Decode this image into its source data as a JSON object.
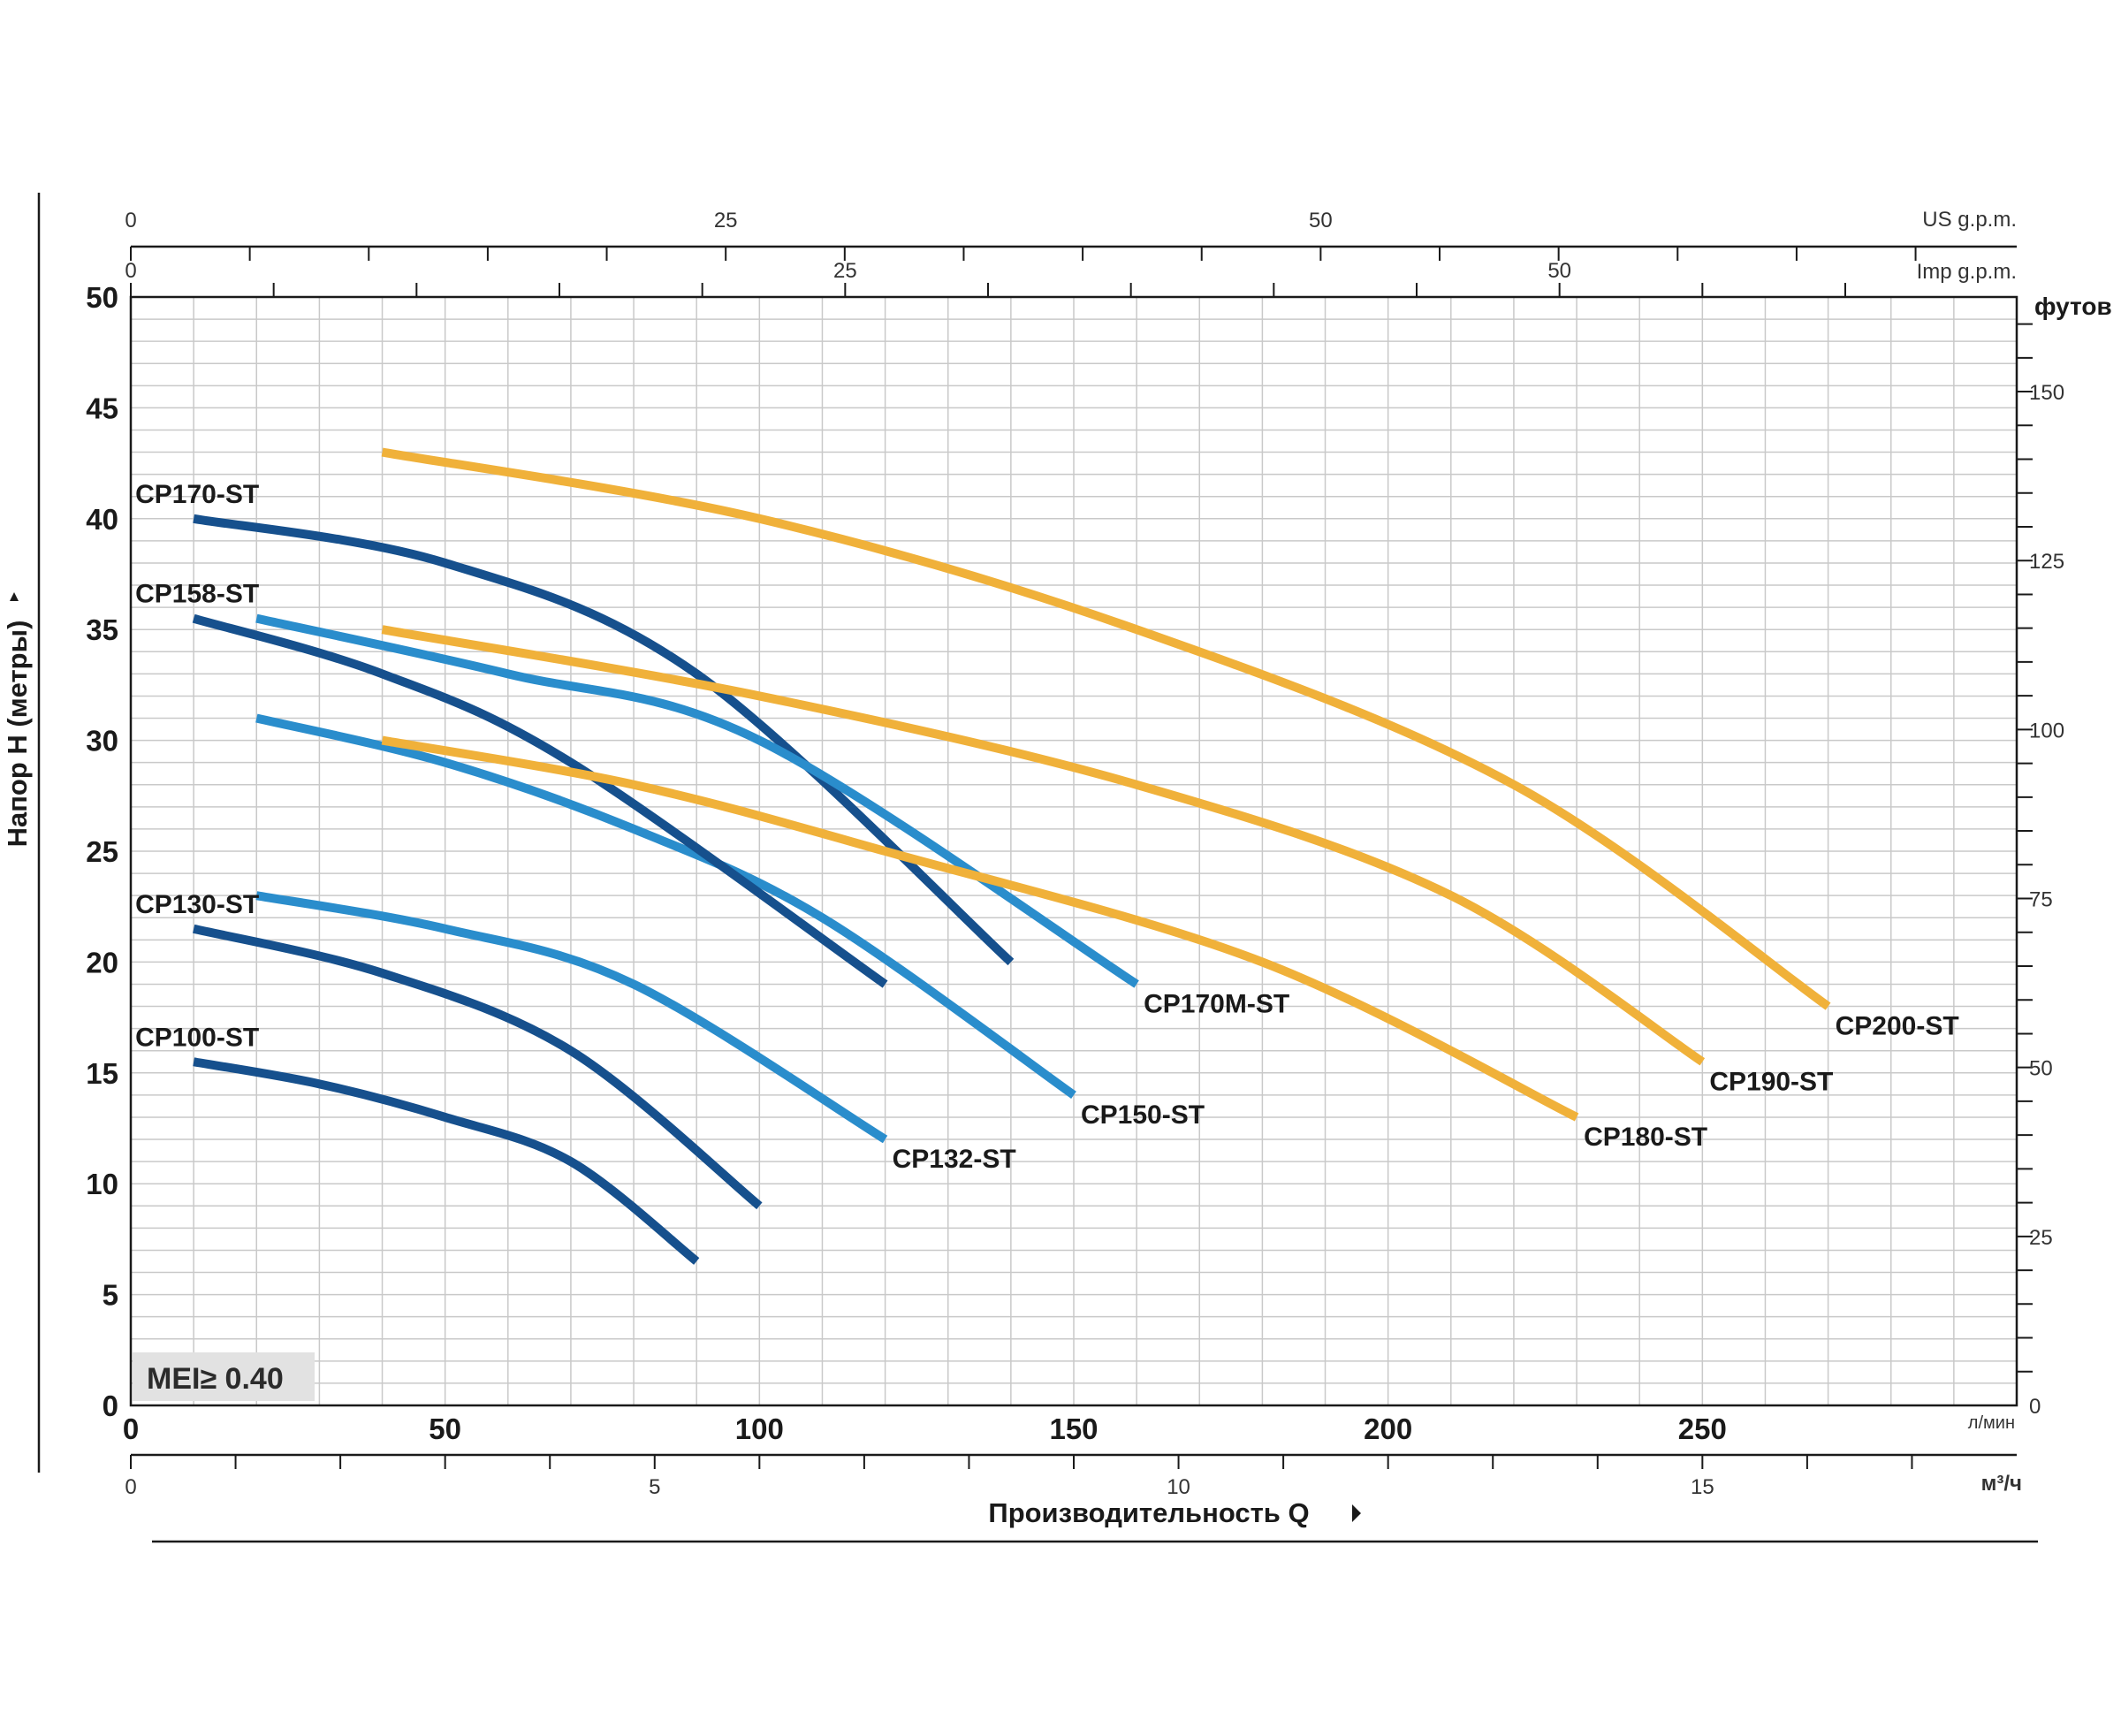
{
  "chart_data": {
    "type": "line",
    "xlabel": "Производительность Q",
    "ylabel": "Напор H (метры)",
    "x_unit": "л/мин",
    "xlim": [
      0,
      300
    ],
    "ylim": [
      0,
      50
    ],
    "x_ticks": [
      0,
      50,
      100,
      150,
      200,
      250
    ],
    "y_ticks": [
      0,
      5,
      10,
      15,
      20,
      25,
      30,
      35,
      40,
      45,
      50
    ],
    "grid": true,
    "secondary_axes": {
      "m3h": {
        "unit": "м³/ч",
        "ticks": [
          0,
          5,
          10,
          15
        ],
        "max": 18
      },
      "us_gpm": {
        "unit": "US g.p.m.",
        "ticks": [
          0,
          25,
          50
        ],
        "max": 79.25
      },
      "imp_gpm": {
        "unit": "Imp g.p.m.",
        "ticks": [
          0,
          25,
          50
        ],
        "max": 66
      },
      "feet": {
        "unit": "футов",
        "ticks": [
          0,
          25,
          50,
          75,
          100,
          125,
          150
        ],
        "max": 164
      }
    },
    "badge": "MEI≥ 0.40",
    "series": [
      {
        "name": "CP100-ST",
        "color": "#16508d",
        "points": [
          [
            10,
            15.5
          ],
          [
            30,
            14.5
          ],
          [
            50,
            13
          ],
          [
            70,
            11
          ],
          [
            90,
            6.5
          ]
        ]
      },
      {
        "name": "CP130-ST",
        "color": "#16508d",
        "points": [
          [
            10,
            21.5
          ],
          [
            40,
            19.5
          ],
          [
            70,
            16
          ],
          [
            100,
            9
          ]
        ]
      },
      {
        "name": "CP132-ST",
        "color": "#2a8dcc",
        "points": [
          [
            20,
            23
          ],
          [
            50,
            21.5
          ],
          [
            80,
            19
          ],
          [
            120,
            12
          ]
        ]
      },
      {
        "name": "CP150-ST",
        "color": "#2a8dcc",
        "points": [
          [
            20,
            31
          ],
          [
            50,
            29
          ],
          [
            80,
            26
          ],
          [
            110,
            22
          ],
          [
            150,
            14
          ]
        ]
      },
      {
        "name": "CP158-ST",
        "color": "#16508d",
        "points": [
          [
            10,
            35.5
          ],
          [
            40,
            33
          ],
          [
            70,
            29
          ],
          [
            120,
            19
          ]
        ]
      },
      {
        "name": "CP170-ST",
        "color": "#16508d",
        "points": [
          [
            10,
            40
          ],
          [
            50,
            38
          ],
          [
            90,
            33
          ],
          [
            140,
            20
          ]
        ]
      },
      {
        "name": "CP170M-ST",
        "color": "#2a8dcc",
        "points": [
          [
            20,
            35.5
          ],
          [
            60,
            33
          ],
          [
            100,
            30
          ],
          [
            160,
            19
          ]
        ]
      },
      {
        "name": "CP180-ST",
        "color": "#f0b13a",
        "points": [
          [
            40,
            30
          ],
          [
            80,
            28
          ],
          [
            120,
            25
          ],
          [
            180,
            20
          ],
          [
            230,
            13
          ]
        ]
      },
      {
        "name": "CP190-ST",
        "color": "#f0b13a",
        "points": [
          [
            40,
            35
          ],
          [
            100,
            32
          ],
          [
            160,
            28
          ],
          [
            210,
            23
          ],
          [
            250,
            15.5
          ]
        ]
      },
      {
        "name": "CP200-ST",
        "color": "#f0b13a",
        "points": [
          [
            40,
            43
          ],
          [
            100,
            40
          ],
          [
            160,
            35
          ],
          [
            220,
            28
          ],
          [
            270,
            18
          ]
        ]
      }
    ]
  }
}
